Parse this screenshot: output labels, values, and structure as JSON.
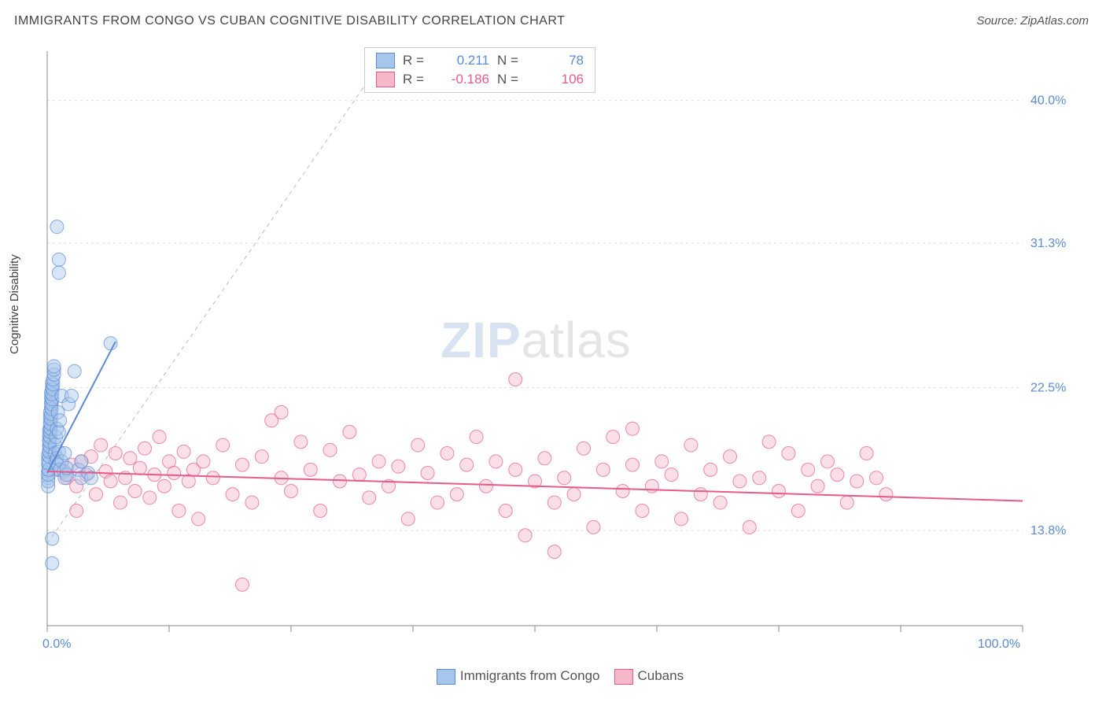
{
  "title": "IMMIGRANTS FROM CONGO VS CUBAN COGNITIVE DISABILITY CORRELATION CHART",
  "source": "Source: ZipAtlas.com",
  "ylabel": "Cognitive Disability",
  "watermark_a": "ZIP",
  "watermark_b": "atlas",
  "chart": {
    "type": "scatter",
    "xlim": [
      0,
      100
    ],
    "ylim": [
      8,
      43
    ],
    "y_ticks": [
      13.8,
      22.5,
      31.3,
      40.0
    ],
    "y_tick_labels": [
      "13.8%",
      "22.5%",
      "31.3%",
      "40.0%"
    ],
    "x_ticks": [
      0,
      12.5,
      25,
      37.5,
      50,
      62.5,
      75,
      87.5,
      100
    ],
    "x_edge_labels": {
      "min": "0.0%",
      "max": "100.0%"
    },
    "grid_color": "#dddddd",
    "axis_color": "#888888",
    "tick_color": "#888888",
    "label_color": "#5b8bd4",
    "diag_color": "#bbbbbb",
    "background": "#ffffff",
    "marker_radius": 8.5,
    "marker_opacity": 0.45,
    "line_width": 2,
    "series": [
      {
        "name": "Immigrants from Congo",
        "color_fill": "#a8c5eb",
        "color_stroke": "#5b8bd4",
        "R": "0.211",
        "N": "78",
        "trend": {
          "x1": 0,
          "y1": 17.3,
          "x2": 7,
          "y2": 25.3
        },
        "points": [
          [
            0.1,
            17.0
          ],
          [
            0.1,
            17.4
          ],
          [
            0.1,
            17.8
          ],
          [
            0.1,
            18.1
          ],
          [
            0.1,
            18.4
          ],
          [
            0.2,
            18.7
          ],
          [
            0.2,
            19.0
          ],
          [
            0.2,
            19.3
          ],
          [
            0.2,
            19.6
          ],
          [
            0.2,
            19.9
          ],
          [
            0.3,
            20.1
          ],
          [
            0.3,
            20.4
          ],
          [
            0.3,
            20.7
          ],
          [
            0.3,
            21.0
          ],
          [
            0.4,
            21.3
          ],
          [
            0.4,
            21.6
          ],
          [
            0.4,
            21.9
          ],
          [
            0.4,
            22.2
          ],
          [
            0.5,
            22.5
          ],
          [
            0.5,
            22.8
          ],
          [
            0.1,
            16.5
          ],
          [
            0.1,
            16.8
          ],
          [
            0.1,
            17.2
          ],
          [
            0.15,
            17.5
          ],
          [
            0.15,
            17.9
          ],
          [
            0.2,
            18.3
          ],
          [
            0.2,
            18.6
          ],
          [
            0.25,
            18.9
          ],
          [
            0.25,
            19.2
          ],
          [
            0.3,
            19.5
          ],
          [
            0.3,
            19.8
          ],
          [
            0.35,
            20.0
          ],
          [
            0.35,
            20.3
          ],
          [
            0.4,
            20.6
          ],
          [
            0.4,
            20.9
          ],
          [
            0.45,
            21.2
          ],
          [
            0.45,
            21.5
          ],
          [
            0.5,
            21.8
          ],
          [
            0.5,
            22.1
          ],
          [
            0.55,
            22.4
          ],
          [
            0.6,
            22.7
          ],
          [
            0.6,
            23.0
          ],
          [
            0.7,
            23.3
          ],
          [
            0.7,
            23.6
          ],
          [
            0.7,
            23.8
          ],
          [
            0.8,
            19.0
          ],
          [
            0.8,
            18.5
          ],
          [
            0.9,
            18.0
          ],
          [
            0.9,
            19.5
          ],
          [
            1.0,
            20.0
          ],
          [
            1.0,
            18.2
          ],
          [
            1.1,
            17.8
          ],
          [
            1.1,
            21.0
          ],
          [
            1.2,
            18.6
          ],
          [
            1.2,
            19.8
          ],
          [
            1.3,
            17.5
          ],
          [
            1.3,
            20.5
          ],
          [
            1.5,
            18.0
          ],
          [
            1.5,
            22.0
          ],
          [
            1.7,
            17.4
          ],
          [
            1.8,
            17.0
          ],
          [
            1.8,
            18.5
          ],
          [
            2.0,
            17.2
          ],
          [
            2.0,
            17.6
          ],
          [
            2.2,
            21.5
          ],
          [
            2.5,
            22.0
          ],
          [
            2.8,
            23.5
          ],
          [
            3.2,
            17.5
          ],
          [
            3.5,
            18.0
          ],
          [
            3.5,
            17.0
          ],
          [
            6.5,
            25.2
          ],
          [
            1.0,
            32.3
          ],
          [
            1.2,
            30.3
          ],
          [
            1.2,
            29.5
          ],
          [
            0.5,
            13.3
          ],
          [
            0.5,
            11.8
          ],
          [
            4.2,
            17.3
          ],
          [
            4.5,
            17.0
          ]
        ]
      },
      {
        "name": "Cubans",
        "color_fill": "#f5b8c8",
        "color_stroke": "#e75a8b",
        "R": "-0.186",
        "N": "106",
        "trend": {
          "x1": 0,
          "y1": 17.4,
          "x2": 100,
          "y2": 15.6
        },
        "points": [
          [
            1,
            17.5
          ],
          [
            2,
            17.0
          ],
          [
            2.5,
            17.8
          ],
          [
            3,
            16.5
          ],
          [
            3.5,
            18.0
          ],
          [
            4,
            17.2
          ],
          [
            4.5,
            18.3
          ],
          [
            5,
            16.0
          ],
          [
            5.5,
            19.0
          ],
          [
            6,
            17.4
          ],
          [
            6.5,
            16.8
          ],
          [
            7,
            18.5
          ],
          [
            7.5,
            15.5
          ],
          [
            8,
            17.0
          ],
          [
            8.5,
            18.2
          ],
          [
            9,
            16.2
          ],
          [
            9.5,
            17.6
          ],
          [
            10,
            18.8
          ],
          [
            10.5,
            15.8
          ],
          [
            11,
            17.2
          ],
          [
            11.5,
            19.5
          ],
          [
            12,
            16.5
          ],
          [
            12.5,
            18.0
          ],
          [
            13,
            17.3
          ],
          [
            13.5,
            15.0
          ],
          [
            14,
            18.6
          ],
          [
            14.5,
            16.8
          ],
          [
            15,
            17.5
          ],
          [
            15.5,
            14.5
          ],
          [
            16,
            18.0
          ],
          [
            17,
            17.0
          ],
          [
            18,
            19.0
          ],
          [
            19,
            16.0
          ],
          [
            20,
            17.8
          ],
          [
            21,
            15.5
          ],
          [
            22,
            18.3
          ],
          [
            23,
            20.5
          ],
          [
            24,
            17.0
          ],
          [
            25,
            16.2
          ],
          [
            26,
            19.2
          ],
          [
            27,
            17.5
          ],
          [
            28,
            15.0
          ],
          [
            29,
            18.7
          ],
          [
            30,
            16.8
          ],
          [
            31,
            19.8
          ],
          [
            32,
            17.2
          ],
          [
            33,
            15.8
          ],
          [
            34,
            18.0
          ],
          [
            35,
            16.5
          ],
          [
            36,
            17.7
          ],
          [
            37,
            14.5
          ],
          [
            38,
            19.0
          ],
          [
            39,
            17.3
          ],
          [
            40,
            15.5
          ],
          [
            41,
            18.5
          ],
          [
            42,
            16.0
          ],
          [
            43,
            17.8
          ],
          [
            44,
            19.5
          ],
          [
            45,
            16.5
          ],
          [
            46,
            18.0
          ],
          [
            47,
            15.0
          ],
          [
            48,
            17.5
          ],
          [
            49,
            13.5
          ],
          [
            50,
            16.8
          ],
          [
            51,
            18.2
          ],
          [
            52,
            15.5
          ],
          [
            53,
            17.0
          ],
          [
            54,
            16.0
          ],
          [
            55,
            18.8
          ],
          [
            56,
            14.0
          ],
          [
            57,
            17.5
          ],
          [
            58,
            19.5
          ],
          [
            59,
            16.2
          ],
          [
            60,
            17.8
          ],
          [
            61,
            15.0
          ],
          [
            62,
            16.5
          ],
          [
            63,
            18.0
          ],
          [
            64,
            17.2
          ],
          [
            65,
            14.5
          ],
          [
            66,
            19.0
          ],
          [
            67,
            16.0
          ],
          [
            68,
            17.5
          ],
          [
            69,
            15.5
          ],
          [
            70,
            18.3
          ],
          [
            71,
            16.8
          ],
          [
            72,
            14.0
          ],
          [
            73,
            17.0
          ],
          [
            74,
            19.2
          ],
          [
            75,
            16.2
          ],
          [
            76,
            18.5
          ],
          [
            77,
            15.0
          ],
          [
            78,
            17.5
          ],
          [
            79,
            16.5
          ],
          [
            80,
            18.0
          ],
          [
            81,
            17.2
          ],
          [
            82,
            15.5
          ],
          [
            83,
            16.8
          ],
          [
            84,
            18.5
          ],
          [
            85,
            17.0
          ],
          [
            86,
            16.0
          ],
          [
            48,
            23.0
          ],
          [
            52,
            12.5
          ],
          [
            20,
            10.5
          ],
          [
            3,
            15.0
          ],
          [
            24,
            21.0
          ],
          [
            60,
            20.0
          ]
        ]
      }
    ]
  },
  "legend_bottom": [
    {
      "label": "Immigrants from Congo",
      "fill": "#a8c5eb",
      "stroke": "#5b8bd4"
    },
    {
      "label": "Cubans",
      "fill": "#f5b8c8",
      "stroke": "#e75a8b"
    }
  ]
}
